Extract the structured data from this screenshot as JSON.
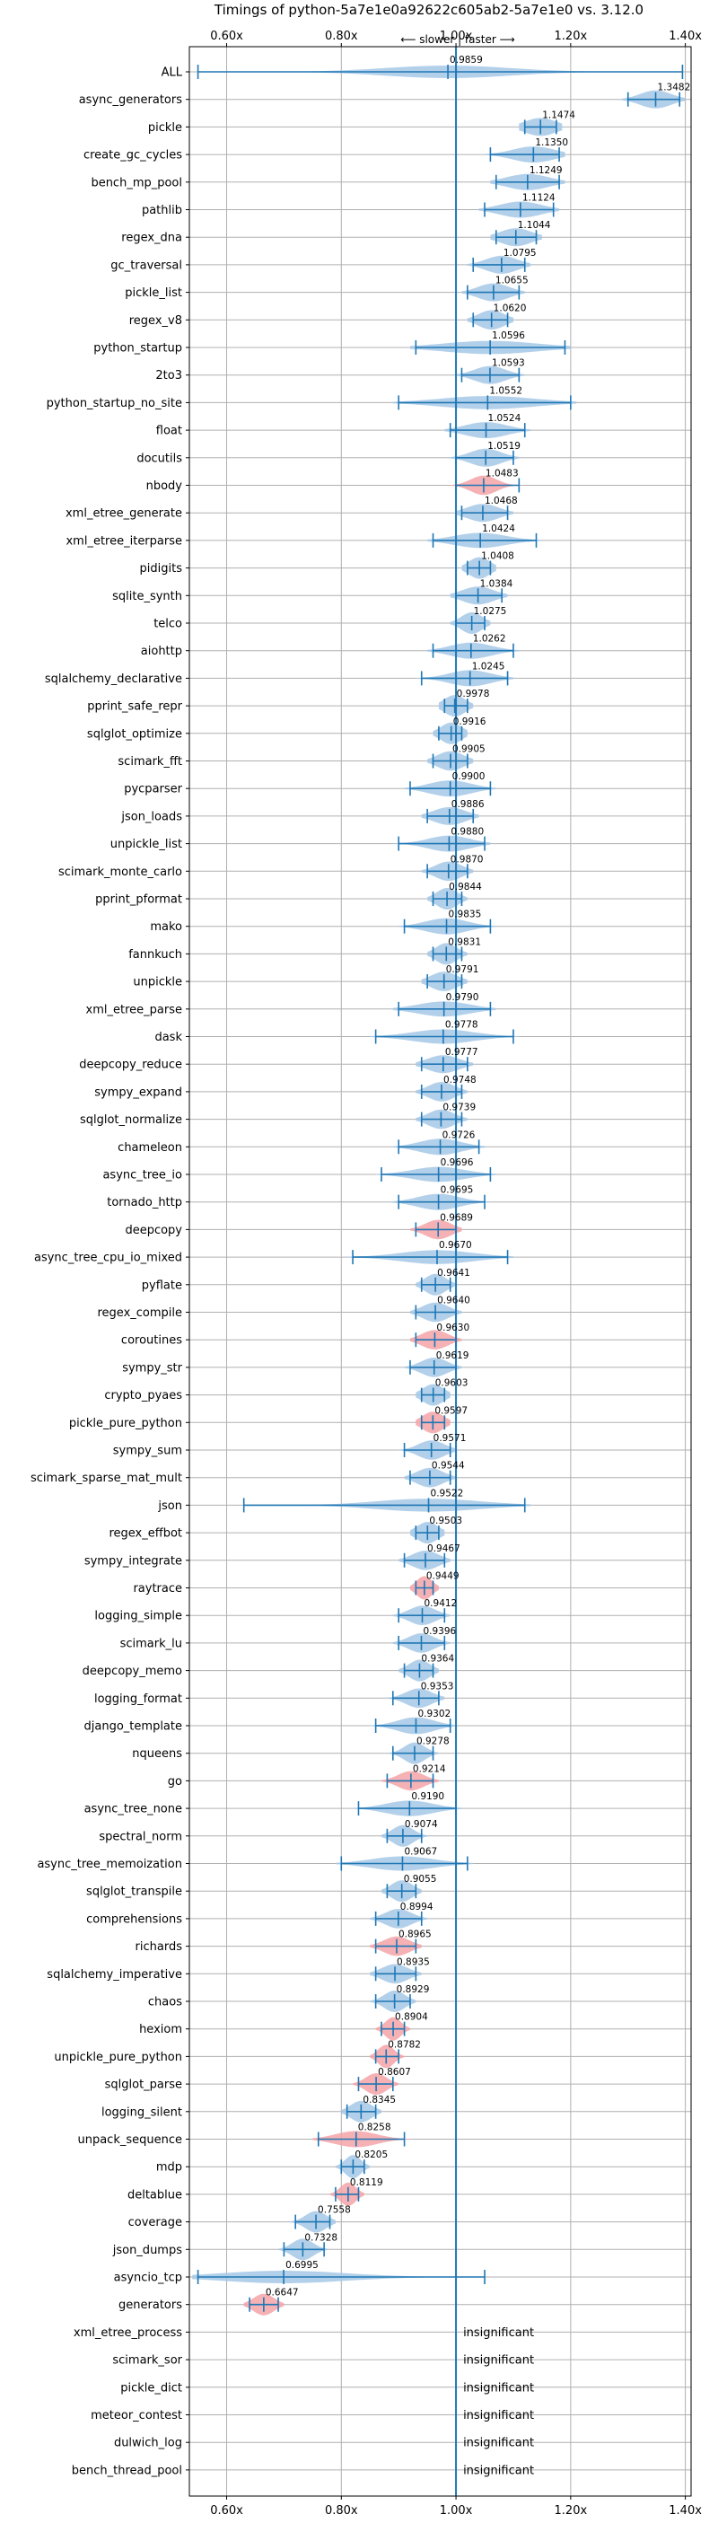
{
  "chart_data": {
    "type": "violin",
    "title": "Timings of python-5a7e1e0a92622c605ab2-5a7e1e0 vs. 3.12.0",
    "direction_note": "⟵ slower | faster ⟶",
    "xlim": [
      0.535,
      1.41
    ],
    "reference_line": 1.0,
    "xticks": [
      0.6,
      0.8,
      1.0,
      1.2,
      1.4
    ],
    "xtick_labels": [
      "0.60x",
      "0.80x",
      "1.00x",
      "1.20x",
      "1.40x"
    ],
    "grid": true,
    "colors": {
      "normal": "#a6c8e6",
      "slower": "#f4a3a8",
      "line": "#1f77b4",
      "grid": "#b0b0b0"
    },
    "insignificant_label": "insignificant",
    "benchmarks": [
      {
        "name": "ALL",
        "value": 0.9859,
        "low": 0.55,
        "high": 1.395,
        "spread": 0.12
      },
      {
        "name": "async_generators",
        "value": 1.3482,
        "low": 1.3,
        "high": 1.39,
        "spread": 0.03
      },
      {
        "name": "pickle",
        "value": 1.1474,
        "low": 1.12,
        "high": 1.175,
        "spread": 0.03
      },
      {
        "name": "create_gc_cycles",
        "value": 1.135,
        "low": 1.06,
        "high": 1.18,
        "spread": 0.04
      },
      {
        "name": "bench_mp_pool",
        "value": 1.1249,
        "low": 1.07,
        "high": 1.18,
        "spread": 0.04
      },
      {
        "name": "pathlib",
        "value": 1.1124,
        "low": 1.05,
        "high": 1.17,
        "spread": 0.04
      },
      {
        "name": "regex_dna",
        "value": 1.1044,
        "low": 1.07,
        "high": 1.14,
        "spread": 0.03
      },
      {
        "name": "gc_traversal",
        "value": 1.0795,
        "low": 1.03,
        "high": 1.12,
        "spread": 0.03
      },
      {
        "name": "pickle_list",
        "value": 1.0655,
        "low": 1.02,
        "high": 1.11,
        "spread": 0.03
      },
      {
        "name": "regex_v8",
        "value": 1.062,
        "low": 1.03,
        "high": 1.09,
        "spread": 0.025
      },
      {
        "name": "python_startup",
        "value": 1.0596,
        "low": 0.93,
        "high": 1.19,
        "spread": 0.09
      },
      {
        "name": "2to3",
        "value": 1.0593,
        "low": 1.01,
        "high": 1.11,
        "spread": 0.03
      },
      {
        "name": "python_startup_no_site",
        "value": 1.0552,
        "low": 0.9,
        "high": 1.2,
        "spread": 0.09
      },
      {
        "name": "float",
        "value": 1.0524,
        "low": 0.99,
        "high": 1.12,
        "spread": 0.04
      },
      {
        "name": "docutils",
        "value": 1.0519,
        "low": 1.0,
        "high": 1.1,
        "spread": 0.03
      },
      {
        "name": "nbody",
        "value": 1.0483,
        "low": 1.0,
        "high": 1.11,
        "spread": 0.025,
        "slower": true
      },
      {
        "name": "xml_etree_generate",
        "value": 1.0468,
        "low": 1.01,
        "high": 1.09,
        "spread": 0.03
      },
      {
        "name": "xml_etree_iterparse",
        "value": 1.0424,
        "low": 0.96,
        "high": 1.14,
        "spread": 0.05
      },
      {
        "name": "pidigits",
        "value": 1.0408,
        "low": 1.02,
        "high": 1.06,
        "spread": 0.02
      },
      {
        "name": "sqlite_synth",
        "value": 1.0384,
        "low": 1.0,
        "high": 1.08,
        "spread": 0.03
      },
      {
        "name": "telco",
        "value": 1.0275,
        "low": 1.0,
        "high": 1.05,
        "spread": 0.02
      },
      {
        "name": "aiohttp",
        "value": 1.0262,
        "low": 0.96,
        "high": 1.1,
        "spread": 0.04
      },
      {
        "name": "sqlalchemy_declarative",
        "value": 1.0245,
        "low": 0.94,
        "high": 1.09,
        "spread": 0.04
      },
      {
        "name": "pprint_safe_repr",
        "value": 0.9978,
        "low": 0.98,
        "high": 1.02,
        "spread": 0.02
      },
      {
        "name": "sqlglot_optimize",
        "value": 0.9916,
        "low": 0.97,
        "high": 1.01,
        "spread": 0.02
      },
      {
        "name": "scimark_fft",
        "value": 0.9905,
        "low": 0.96,
        "high": 1.02,
        "spread": 0.025
      },
      {
        "name": "pycparser",
        "value": 0.99,
        "low": 0.92,
        "high": 1.06,
        "spread": 0.04
      },
      {
        "name": "json_loads",
        "value": 0.9886,
        "low": 0.95,
        "high": 1.03,
        "spread": 0.03
      },
      {
        "name": "unpickle_list",
        "value": 0.988,
        "low": 0.9,
        "high": 1.05,
        "spread": 0.04
      },
      {
        "name": "scimark_monte_carlo",
        "value": 0.987,
        "low": 0.95,
        "high": 1.02,
        "spread": 0.025
      },
      {
        "name": "pprint_pformat",
        "value": 0.9844,
        "low": 0.96,
        "high": 1.01,
        "spread": 0.02
      },
      {
        "name": "mako",
        "value": 0.9835,
        "low": 0.91,
        "high": 1.06,
        "spread": 0.04
      },
      {
        "name": "fannkuch",
        "value": 0.9831,
        "low": 0.96,
        "high": 1.01,
        "spread": 0.02
      },
      {
        "name": "unpickle",
        "value": 0.9791,
        "low": 0.95,
        "high": 1.01,
        "spread": 0.025
      },
      {
        "name": "xml_etree_parse",
        "value": 0.979,
        "low": 0.9,
        "high": 1.06,
        "spread": 0.05
      },
      {
        "name": "dask",
        "value": 0.9778,
        "low": 0.86,
        "high": 1.1,
        "spread": 0.06
      },
      {
        "name": "deepcopy_reduce",
        "value": 0.9777,
        "low": 0.94,
        "high": 1.02,
        "spread": 0.03
      },
      {
        "name": "sympy_expand",
        "value": 0.9748,
        "low": 0.94,
        "high": 1.01,
        "spread": 0.025
      },
      {
        "name": "sqlglot_normalize",
        "value": 0.9739,
        "low": 0.94,
        "high": 1.01,
        "spread": 0.025
      },
      {
        "name": "chameleon",
        "value": 0.9726,
        "low": 0.9,
        "high": 1.04,
        "spread": 0.04
      },
      {
        "name": "async_tree_io",
        "value": 0.9696,
        "low": 0.87,
        "high": 1.06,
        "spread": 0.05
      },
      {
        "name": "tornado_http",
        "value": 0.9695,
        "low": 0.9,
        "high": 1.05,
        "spread": 0.04
      },
      {
        "name": "deepcopy",
        "value": 0.9689,
        "low": 0.93,
        "high": 1.0,
        "spread": 0.025,
        "slower": true
      },
      {
        "name": "async_tree_cpu_io_mixed",
        "value": 0.967,
        "low": 0.82,
        "high": 1.09,
        "spread": 0.07
      },
      {
        "name": "pyflate",
        "value": 0.9641,
        "low": 0.94,
        "high": 0.99,
        "spread": 0.02
      },
      {
        "name": "regex_compile",
        "value": 0.964,
        "low": 0.93,
        "high": 1.0,
        "spread": 0.025
      },
      {
        "name": "coroutines",
        "value": 0.963,
        "low": 0.93,
        "high": 1.0,
        "spread": 0.025,
        "slower": true
      },
      {
        "name": "sympy_str",
        "value": 0.9619,
        "low": 0.92,
        "high": 1.0,
        "spread": 0.025
      },
      {
        "name": "crypto_pyaes",
        "value": 0.9603,
        "low": 0.94,
        "high": 0.98,
        "spread": 0.02
      },
      {
        "name": "pickle_pure_python",
        "value": 0.9597,
        "low": 0.94,
        "high": 0.98,
        "spread": 0.02,
        "slower": true
      },
      {
        "name": "sympy_sum",
        "value": 0.9571,
        "low": 0.91,
        "high": 0.99,
        "spread": 0.025
      },
      {
        "name": "scimark_sparse_mat_mult",
        "value": 0.9544,
        "low": 0.92,
        "high": 0.99,
        "spread": 0.025
      },
      {
        "name": "json",
        "value": 0.9522,
        "low": 0.63,
        "high": 1.12,
        "spread": 0.1
      },
      {
        "name": "regex_effbot",
        "value": 0.9503,
        "low": 0.93,
        "high": 0.97,
        "spread": 0.02
      },
      {
        "name": "sympy_integrate",
        "value": 0.9467,
        "low": 0.91,
        "high": 0.98,
        "spread": 0.025
      },
      {
        "name": "raytrace",
        "value": 0.9449,
        "low": 0.93,
        "high": 0.96,
        "spread": 0.015,
        "slower": true
      },
      {
        "name": "logging_simple",
        "value": 0.9412,
        "low": 0.9,
        "high": 0.98,
        "spread": 0.025
      },
      {
        "name": "scimark_lu",
        "value": 0.9396,
        "low": 0.9,
        "high": 0.98,
        "spread": 0.025
      },
      {
        "name": "deepcopy_memo",
        "value": 0.9364,
        "low": 0.91,
        "high": 0.96,
        "spread": 0.02
      },
      {
        "name": "logging_format",
        "value": 0.9353,
        "low": 0.89,
        "high": 0.97,
        "spread": 0.025
      },
      {
        "name": "django_template",
        "value": 0.9302,
        "low": 0.86,
        "high": 0.99,
        "spread": 0.035
      },
      {
        "name": "nqueens",
        "value": 0.9278,
        "low": 0.89,
        "high": 0.96,
        "spread": 0.02
      },
      {
        "name": "go",
        "value": 0.9214,
        "low": 0.88,
        "high": 0.96,
        "spread": 0.025,
        "slower": true
      },
      {
        "name": "async_tree_none",
        "value": 0.919,
        "low": 0.83,
        "high": 1.0,
        "spread": 0.045
      },
      {
        "name": "spectral_norm",
        "value": 0.9074,
        "low": 0.88,
        "high": 0.94,
        "spread": 0.02
      },
      {
        "name": "async_tree_memoization",
        "value": 0.9067,
        "low": 0.8,
        "high": 1.02,
        "spread": 0.06
      },
      {
        "name": "sqlglot_transpile",
        "value": 0.9055,
        "low": 0.88,
        "high": 0.93,
        "spread": 0.02
      },
      {
        "name": "comprehensions",
        "value": 0.8994,
        "low": 0.86,
        "high": 0.94,
        "spread": 0.025
      },
      {
        "name": "richards",
        "value": 0.8965,
        "low": 0.86,
        "high": 0.93,
        "spread": 0.025,
        "slower": true
      },
      {
        "name": "sqlalchemy_imperative",
        "value": 0.8935,
        "low": 0.86,
        "high": 0.93,
        "spread": 0.025
      },
      {
        "name": "chaos",
        "value": 0.8929,
        "low": 0.86,
        "high": 0.92,
        "spread": 0.02
      },
      {
        "name": "hexiom",
        "value": 0.8904,
        "low": 0.87,
        "high": 0.91,
        "spread": 0.015,
        "slower": true
      },
      {
        "name": "unpickle_pure_python",
        "value": 0.8782,
        "low": 0.86,
        "high": 0.9,
        "spread": 0.015,
        "slower": true
      },
      {
        "name": "sqlglot_parse",
        "value": 0.8607,
        "low": 0.83,
        "high": 0.89,
        "spread": 0.02,
        "slower": true
      },
      {
        "name": "logging_silent",
        "value": 0.8345,
        "low": 0.81,
        "high": 0.86,
        "spread": 0.02
      },
      {
        "name": "unpack_sequence",
        "value": 0.8258,
        "low": 0.76,
        "high": 0.91,
        "spread": 0.04,
        "slower": true
      },
      {
        "name": "mdp",
        "value": 0.8205,
        "low": 0.8,
        "high": 0.84,
        "spread": 0.015
      },
      {
        "name": "deltablue",
        "value": 0.8119,
        "low": 0.79,
        "high": 0.83,
        "spread": 0.015,
        "slower": true
      },
      {
        "name": "coverage",
        "value": 0.7558,
        "low": 0.72,
        "high": 0.78,
        "spread": 0.02
      },
      {
        "name": "json_dumps",
        "value": 0.7328,
        "low": 0.7,
        "high": 0.77,
        "spread": 0.02
      },
      {
        "name": "asyncio_tcp",
        "value": 0.6995,
        "low": 0.55,
        "high": 1.05,
        "spread": 0.12
      },
      {
        "name": "generators",
        "value": 0.6647,
        "low": 0.64,
        "high": 0.69,
        "spread": 0.02,
        "slower": true
      },
      {
        "name": "xml_etree_process",
        "insignificant": true
      },
      {
        "name": "scimark_sor",
        "insignificant": true
      },
      {
        "name": "pickle_dict",
        "insignificant": true
      },
      {
        "name": "meteor_contest",
        "insignificant": true
      },
      {
        "name": "dulwich_log",
        "insignificant": true
      },
      {
        "name": "bench_thread_pool",
        "insignificant": true
      }
    ]
  }
}
